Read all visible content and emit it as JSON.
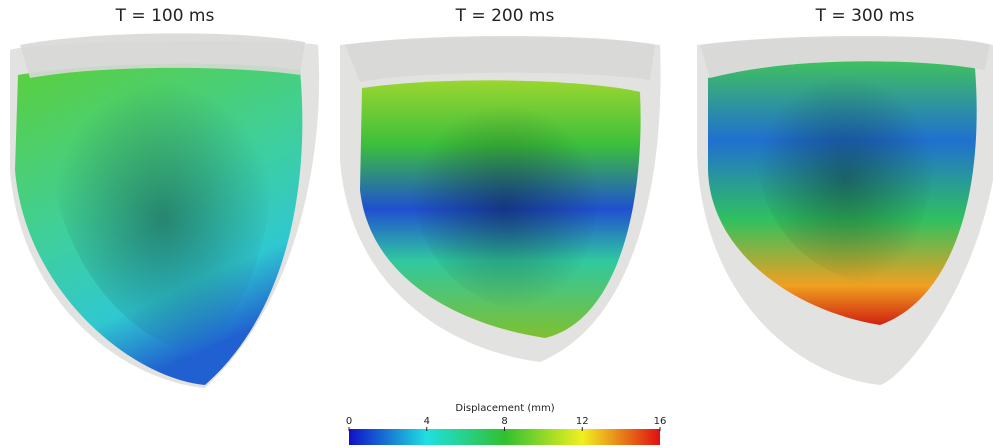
{
  "panels": [
    {
      "title": "T = 100 ms"
    },
    {
      "title": "T = 200 ms"
    },
    {
      "title": "T = 300 ms"
    }
  ],
  "colorbar": {
    "label": "Displacement (mm)",
    "range": [
      0,
      16
    ],
    "ticks": [
      0,
      4,
      8,
      12,
      16
    ]
  }
}
